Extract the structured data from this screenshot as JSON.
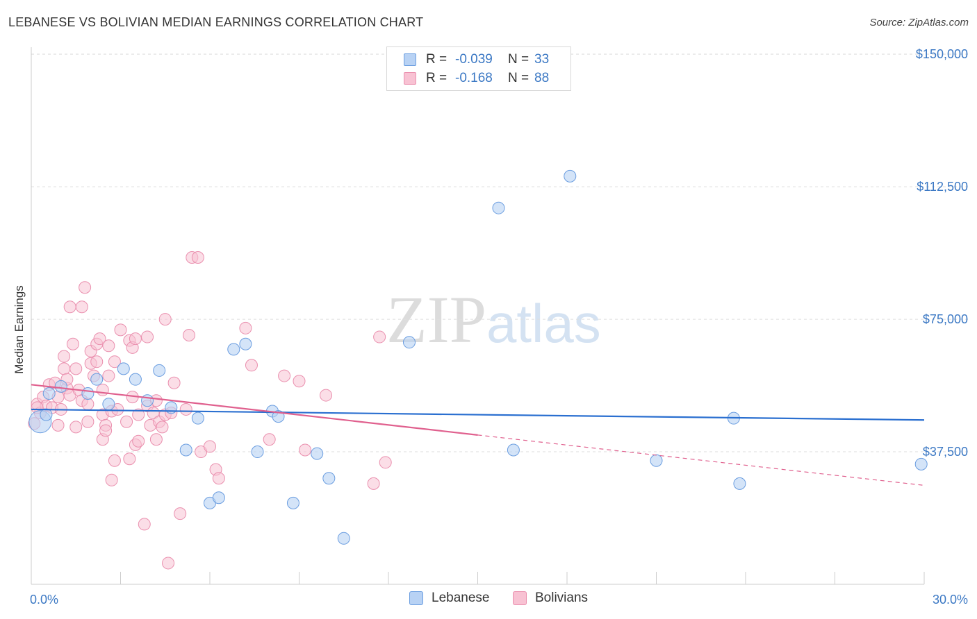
{
  "header": {
    "title": "LEBANESE VS BOLIVIAN MEDIAN EARNINGS CORRELATION CHART",
    "source": "Source: ZipAtlas.com"
  },
  "watermark": {
    "zip": "ZIP",
    "atlas": "atlas"
  },
  "colors": {
    "lebanese_fill": "#b8d2f4",
    "lebanese_stroke": "#6a9de0",
    "lebanese_line": "#2a6fd0",
    "bolivians_fill": "#f8c2d3",
    "bolivians_stroke": "#ea8fae",
    "bolivians_line": "#e0608e",
    "gridline": "#dedede",
    "axis_label": "#3b78c4"
  },
  "legend": {
    "rows": [
      {
        "r_label": "R =",
        "r_value": "-0.039",
        "n_label": "N =",
        "n_value": "33"
      },
      {
        "r_label": "R =",
        "r_value": "-0.168",
        "n_label": "N =",
        "n_value": "88"
      }
    ]
  },
  "bottom_legend": {
    "items": [
      {
        "label": "Lebanese"
      },
      {
        "label": "Bolivians"
      }
    ]
  },
  "chart_data": {
    "type": "scatter",
    "title": "LEBANESE VS BOLIVIAN MEDIAN EARNINGS CORRELATION CHART",
    "xlabel": "",
    "ylabel": "Median Earnings",
    "xlim": [
      0,
      30
    ],
    "ylim": [
      0,
      152000
    ],
    "x_tick_labels": [
      "0.0%",
      "30.0%"
    ],
    "y_ticks": [
      37500,
      75000,
      112500,
      150000
    ],
    "y_tick_labels": [
      "$37,500",
      "$75,000",
      "$112,500",
      "$150,000"
    ],
    "grid": true,
    "series": [
      {
        "name": "Lebanese",
        "r": -0.039,
        "n": 33,
        "trend": {
          "x": [
            0,
            30
          ],
          "y": [
            49500,
            46500
          ],
          "solid_to": 30
        },
        "points": [
          {
            "x": 0.3,
            "y": 46000,
            "big": true
          },
          {
            "x": 0.6,
            "y": 54000
          },
          {
            "x": 1.0,
            "y": 56000
          },
          {
            "x": 1.9,
            "y": 54000
          },
          {
            "x": 2.2,
            "y": 58000
          },
          {
            "x": 2.6,
            "y": 51000
          },
          {
            "x": 3.1,
            "y": 61000
          },
          {
            "x": 3.5,
            "y": 58000
          },
          {
            "x": 3.9,
            "y": 52000
          },
          {
            "x": 4.3,
            "y": 60500
          },
          {
            "x": 4.7,
            "y": 50000
          },
          {
            "x": 5.2,
            "y": 38000
          },
          {
            "x": 5.6,
            "y": 47000
          },
          {
            "x": 6.0,
            "y": 23000
          },
          {
            "x": 6.3,
            "y": 24500
          },
          {
            "x": 6.8,
            "y": 66500
          },
          {
            "x": 7.2,
            "y": 68000
          },
          {
            "x": 7.6,
            "y": 37500
          },
          {
            "x": 8.1,
            "y": 49000
          },
          {
            "x": 8.3,
            "y": 47500
          },
          {
            "x": 8.8,
            "y": 23000
          },
          {
            "x": 9.6,
            "y": 37000
          },
          {
            "x": 10.0,
            "y": 30000
          },
          {
            "x": 10.5,
            "y": 13000
          },
          {
            "x": 12.7,
            "y": 68500
          },
          {
            "x": 15.7,
            "y": 106500
          },
          {
            "x": 16.2,
            "y": 38000
          },
          {
            "x": 18.1,
            "y": 115500
          },
          {
            "x": 21.0,
            "y": 35000
          },
          {
            "x": 23.6,
            "y": 47000
          },
          {
            "x": 23.8,
            "y": 28500
          },
          {
            "x": 29.9,
            "y": 34000
          },
          {
            "x": 0.5,
            "y": 48000
          }
        ]
      },
      {
        "name": "Bolivians",
        "r": -0.168,
        "n": 88,
        "trend": {
          "x": [
            0,
            30
          ],
          "y": [
            56500,
            28000
          ],
          "solid_to": 15
        }
      }
    ]
  },
  "bolivian_points": [
    [
      0.2,
      51000
    ],
    [
      0.3,
      48500
    ],
    [
      0.4,
      53000
    ],
    [
      0.5,
      50500
    ],
    [
      0.6,
      56500
    ],
    [
      0.7,
      50000
    ],
    [
      0.8,
      57000
    ],
    [
      0.9,
      53000
    ],
    [
      1.0,
      49500
    ],
    [
      1.1,
      61000
    ],
    [
      1.2,
      55500
    ],
    [
      1.3,
      53500
    ],
    [
      1.1,
      64500
    ],
    [
      1.2,
      58000
    ],
    [
      1.3,
      78500
    ],
    [
      1.4,
      68000
    ],
    [
      1.5,
      61000
    ],
    [
      1.5,
      44500
    ],
    [
      1.6,
      55000
    ],
    [
      1.7,
      78500
    ],
    [
      1.7,
      52000
    ],
    [
      1.8,
      84000
    ],
    [
      1.9,
      51000
    ],
    [
      1.9,
      46000
    ],
    [
      2.0,
      62500
    ],
    [
      2.0,
      66000
    ],
    [
      2.1,
      59000
    ],
    [
      2.2,
      63000
    ],
    [
      2.2,
      68000
    ],
    [
      2.3,
      69500
    ],
    [
      2.4,
      55000
    ],
    [
      2.4,
      41000
    ],
    [
      2.4,
      48000
    ],
    [
      2.5,
      45000
    ],
    [
      2.6,
      59000
    ],
    [
      2.6,
      67500
    ],
    [
      2.7,
      29500
    ],
    [
      2.7,
      49000
    ],
    [
      2.8,
      63000
    ],
    [
      2.8,
      35000
    ],
    [
      2.9,
      49500
    ],
    [
      3.0,
      72000
    ],
    [
      3.2,
      46000
    ],
    [
      3.3,
      69000
    ],
    [
      3.3,
      35500
    ],
    [
      3.4,
      67000
    ],
    [
      3.4,
      53000
    ],
    [
      3.5,
      39500
    ],
    [
      3.5,
      69500
    ],
    [
      3.6,
      40500
    ],
    [
      3.8,
      17000
    ],
    [
      3.9,
      70000
    ],
    [
      3.9,
      50500
    ],
    [
      4.0,
      45000
    ],
    [
      4.1,
      48500
    ],
    [
      4.2,
      41000
    ],
    [
      4.2,
      52000
    ],
    [
      4.3,
      46000
    ],
    [
      4.5,
      75000
    ],
    [
      4.5,
      48000
    ],
    [
      4.6,
      6000
    ],
    [
      4.7,
      48500
    ],
    [
      4.8,
      57000
    ],
    [
      5.0,
      20000
    ],
    [
      5.2,
      49500
    ],
    [
      5.3,
      70500
    ],
    [
      5.4,
      92500
    ],
    [
      5.6,
      92500
    ],
    [
      5.7,
      37500
    ],
    [
      6.0,
      39000
    ],
    [
      6.2,
      32500
    ],
    [
      6.3,
      30000
    ],
    [
      7.2,
      72500
    ],
    [
      7.4,
      62000
    ],
    [
      8.0,
      41000
    ],
    [
      8.5,
      59000
    ],
    [
      9.0,
      57500
    ],
    [
      9.2,
      38000
    ],
    [
      9.9,
      53500
    ],
    [
      11.5,
      28500
    ],
    [
      11.7,
      70000
    ],
    [
      11.9,
      34500
    ],
    [
      0.1,
      45500
    ],
    [
      0.2,
      50000
    ],
    [
      0.9,
      45000
    ],
    [
      2.5,
      43500
    ],
    [
      3.6,
      48000
    ],
    [
      4.4,
      44500
    ]
  ]
}
